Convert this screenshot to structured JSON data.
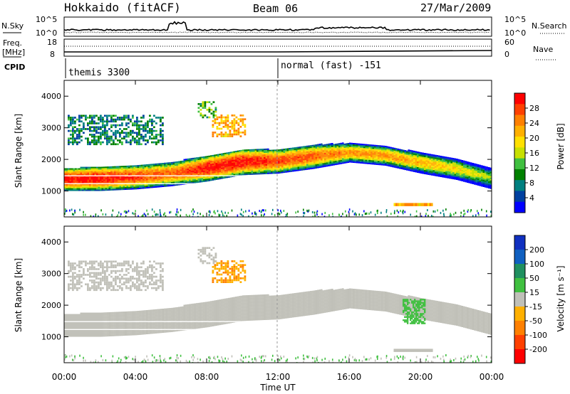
{
  "header": {
    "station": "Hokkaido (fitACF)",
    "beam": "Beam 06",
    "date": "27/Mar/2009"
  },
  "noise_panel": {
    "left_label": "N.Sky",
    "right_label": "N.Search",
    "left_ticks": [
      "10^5",
      "10^0"
    ],
    "right_ticks": [
      "10^5",
      "10^0"
    ]
  },
  "freq_panel": {
    "left_label_top": "Freq.",
    "left_label_unit": "[MHz]",
    "right_label": "Nave",
    "left_ticks": [
      "18",
      "8"
    ],
    "right_ticks": [
      "60",
      "0"
    ]
  },
  "cpid": {
    "label": "CPID",
    "segments": [
      {
        "start_hour": 0.0,
        "name": "themis 3300"
      },
      {
        "start_hour": 11.95,
        "name": "normal (fast) -151"
      }
    ]
  },
  "x_axis": {
    "label": "Time UT",
    "tick_labels": [
      "00:00",
      "04:00",
      "08:00",
      "12:00",
      "16:00",
      "20:00",
      "00:00"
    ],
    "tick_hours": [
      0,
      4,
      8,
      12,
      16,
      20,
      24
    ]
  },
  "y_axis": {
    "label": "Slant Range [km]",
    "tick_labels": [
      "1000",
      "2000",
      "3000",
      "4000"
    ],
    "tick_values": [
      1000,
      2000,
      3000,
      4000
    ],
    "range": [
      180,
      4500
    ]
  },
  "power_colorbar": {
    "label": "Power [dB]",
    "tick_labels": [
      "28",
      "24",
      "20",
      "16",
      "12",
      "8",
      "4"
    ],
    "colors": [
      "#ff0000",
      "#ff4000",
      "#ff8000",
      "#ffb000",
      "#ffe000",
      "#c8e000",
      "#40c040",
      "#008000",
      "#008080",
      "#0040a0",
      "#0000ff"
    ]
  },
  "velocity_colorbar": {
    "label": "Velocity [m s⁻¹]",
    "tick_labels": [
      "200",
      "100",
      "50",
      "15",
      "-15",
      "-50",
      "-100",
      "-200"
    ],
    "colors": [
      "#1030c0",
      "#1060c0",
      "#209060",
      "#40c040",
      "#c0c0b8",
      "#ffb000",
      "#ff8000",
      "#ff4000",
      "#ff0000"
    ]
  },
  "chart_data": {
    "type": "heatmap",
    "title": "Hokkaido (fitACF)",
    "xlabel": "Time UT",
    "ylabel": "Slant Range [km]",
    "xlim_hours": [
      0,
      24
    ],
    "ylim": [
      180,
      4500
    ],
    "main_band": {
      "hours": [
        0,
        2,
        4,
        6,
        8,
        10,
        12,
        14,
        16,
        18,
        20,
        22,
        24
      ],
      "lower_km": [
        1000,
        1000,
        1050,
        1150,
        1300,
        1500,
        1550,
        1700,
        1900,
        1800,
        1550,
        1350,
        1050
      ],
      "upper_km": [
        1700,
        1750,
        1800,
        1900,
        2100,
        2300,
        2300,
        2450,
        2500,
        2400,
        2200,
        2000,
        1700
      ],
      "peak_power_db": [
        28,
        28,
        26,
        24,
        28,
        28,
        26,
        24,
        22,
        22,
        20,
        18,
        14
      ]
    },
    "upper_patches": [
      {
        "start_hour": 0.2,
        "end_hour": 5.5,
        "lower_km": 2450,
        "upper_km": 3400,
        "power_db": 8
      },
      {
        "start_hour": 8.3,
        "end_hour": 10.2,
        "lower_km": 2700,
        "upper_km": 3400,
        "power_db": 20
      },
      {
        "start_hour": 7.5,
        "end_hour": 8.5,
        "lower_km": 3300,
        "upper_km": 3800,
        "power_db": 12
      }
    ],
    "low_patch": {
      "start_hour": 18.5,
      "end_hour": 20.7,
      "lower_km": 520,
      "upper_km": 620,
      "power_db": 20
    },
    "velocity_main_ms": 0,
    "velocity_upper_patch_ms": -60,
    "velocity_green_patch": {
      "start_hour": 19.0,
      "end_hour": 20.2,
      "lower_km": 1400,
      "upper_km": 2200,
      "velocity_ms": 30
    }
  }
}
